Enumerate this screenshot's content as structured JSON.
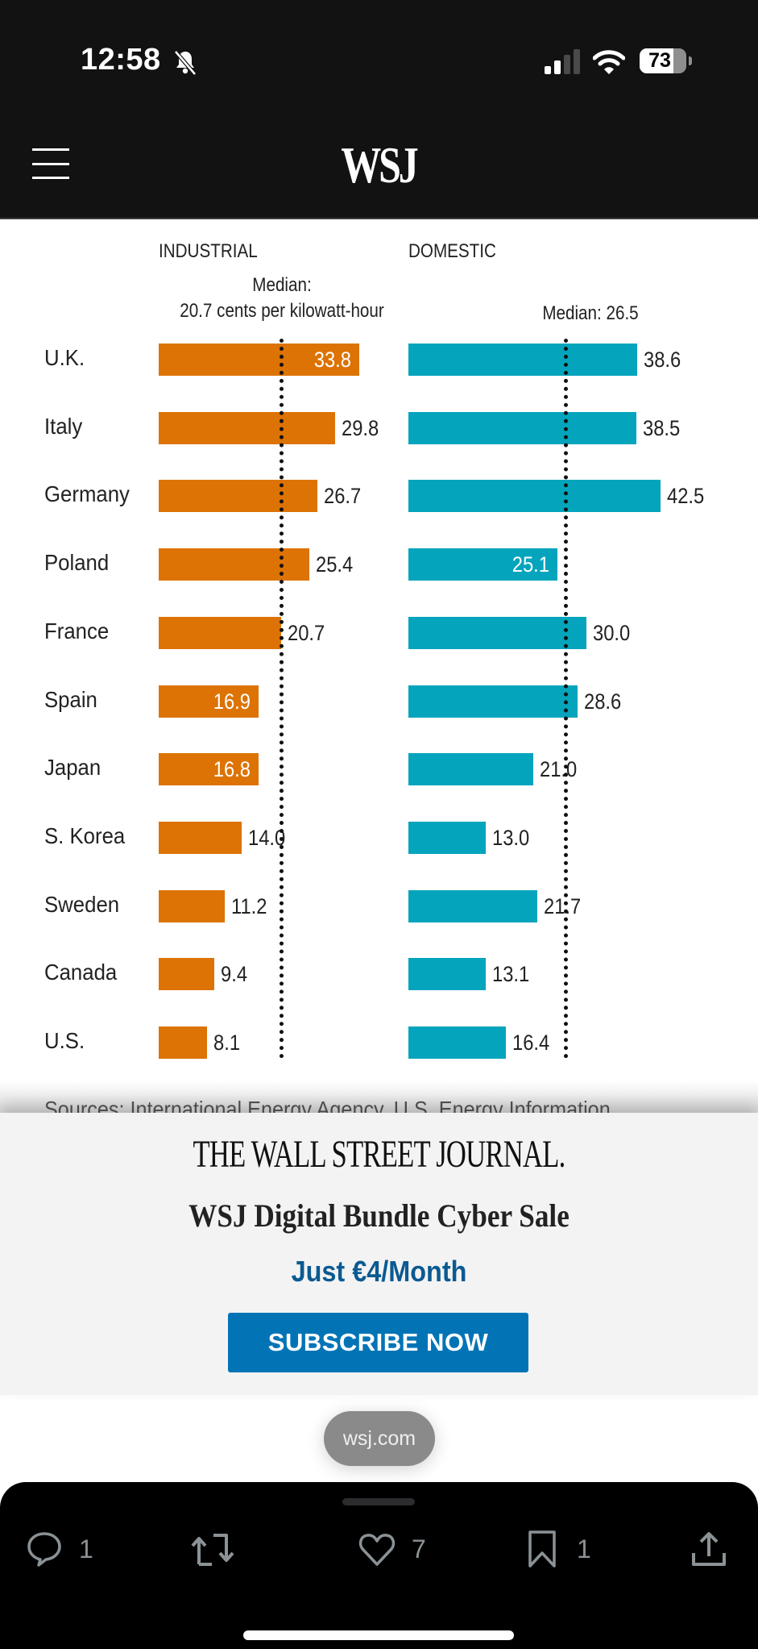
{
  "status_bar": {
    "time": "12:58",
    "silent_mode": true,
    "signal_bars_lit": 2,
    "signal_bars_total": 4,
    "battery_percent": 73,
    "battery_label": "73"
  },
  "header": {
    "logo": "WSJ",
    "menu_icon": "hamburger-icon"
  },
  "chart_data": {
    "type": "bar",
    "orientation": "horizontal",
    "categories": [
      "U.K.",
      "Italy",
      "Germany",
      "Poland",
      "France",
      "Spain",
      "Japan",
      "S. Korea",
      "Sweden",
      "Canada",
      "U.S."
    ],
    "series": [
      {
        "name": "INDUSTRIAL",
        "values": [
          33.8,
          29.8,
          26.7,
          25.4,
          20.7,
          16.9,
          16.8,
          14.0,
          11.2,
          9.4,
          8.1
        ],
        "labels": [
          "33.8",
          "29.8",
          "26.7",
          "25.4",
          "20.7",
          "16.9",
          "16.8",
          "14.0",
          "11.2",
          "9.4",
          "8.1"
        ],
        "label_inside": [
          true,
          false,
          false,
          false,
          false,
          true,
          true,
          false,
          false,
          false,
          false
        ],
        "color": "#dc7304",
        "median": 20.7,
        "median_label_line1": "Median:",
        "median_label_line2": "20.7 cents per kilowatt-hour"
      },
      {
        "name": "DOMESTIC",
        "values": [
          38.6,
          38.5,
          42.5,
          25.1,
          30.0,
          28.6,
          21.0,
          13.0,
          21.7,
          13.1,
          16.4
        ],
        "labels": [
          "38.6",
          "38.5",
          "42.5",
          "25.1",
          "30.0",
          "28.6",
          "21.0",
          "13.0",
          "21.7",
          "13.1",
          "16.4"
        ],
        "label_inside": [
          false,
          false,
          false,
          true,
          false,
          false,
          false,
          false,
          false,
          false,
          false
        ],
        "color": "#04a4bd",
        "median": 26.5,
        "median_label": "Median: 26.5"
      }
    ],
    "unit": "cents per kilowatt-hour",
    "xlim": [
      0,
      45
    ],
    "grid": false,
    "legend": "none",
    "source_partial": "Sources: International Energy Agency, U.S. Energy Information"
  },
  "banner": {
    "masthead": "THE WALL STREET JOURNAL.",
    "title": "WSJ Digital Bundle Cyber Sale",
    "price": "Just €4/Month",
    "cta": "SUBSCRIBE NOW",
    "cta_color": "#0274b6",
    "price_color": "#0b5a91"
  },
  "url_pill": "wsj.com",
  "actions": [
    {
      "icon": "reply-icon",
      "count": "1"
    },
    {
      "icon": "repost-icon",
      "count": ""
    },
    {
      "icon": "like-icon",
      "count": "7"
    },
    {
      "icon": "bookmark-icon",
      "count": "1"
    },
    {
      "icon": "share-icon",
      "count": ""
    }
  ]
}
